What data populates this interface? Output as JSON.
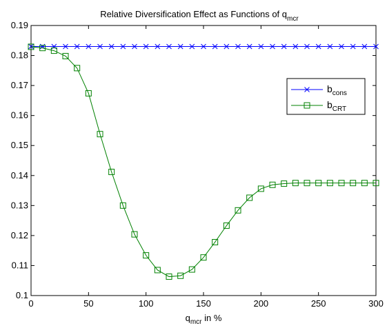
{
  "chart_data": {
    "type": "line",
    "title": {
      "main": "Relative Diversification Effect as Functions of q",
      "sub": "mcr"
    },
    "xlabel": {
      "main": "q",
      "sub": "mcr",
      "suffix": " in %"
    },
    "ylabel": "",
    "xlim": [
      0,
      300
    ],
    "ylim": [
      0.1,
      0.19
    ],
    "x_ticks": [
      0,
      50,
      100,
      150,
      200,
      250,
      300
    ],
    "y_ticks": [
      0.1,
      0.11,
      0.12,
      0.13,
      0.14,
      0.15,
      0.16,
      0.17,
      0.18,
      0.19
    ],
    "grid": false,
    "legend_position": "right",
    "x": [
      0,
      10,
      20,
      30,
      40,
      50,
      60,
      70,
      80,
      90,
      100,
      110,
      120,
      130,
      140,
      150,
      160,
      170,
      180,
      190,
      200,
      210,
      220,
      230,
      240,
      250,
      260,
      270,
      280,
      290,
      300
    ],
    "series": [
      {
        "name": {
          "main": "b",
          "sub": "cons"
        },
        "color": "#0000ff",
        "marker": "x",
        "values": [
          0.183,
          0.183,
          0.183,
          0.183,
          0.183,
          0.183,
          0.183,
          0.183,
          0.183,
          0.183,
          0.183,
          0.183,
          0.183,
          0.183,
          0.183,
          0.183,
          0.183,
          0.183,
          0.183,
          0.183,
          0.183,
          0.183,
          0.183,
          0.183,
          0.183,
          0.183,
          0.183,
          0.183,
          0.183,
          0.183,
          0.183
        ]
      },
      {
        "name": {
          "main": "b",
          "sub": "CRT"
        },
        "color": "#008000",
        "marker": "square",
        "values": [
          0.1829,
          0.1825,
          0.1816,
          0.1798,
          0.1758,
          0.1674,
          0.1538,
          0.1412,
          0.13,
          0.1204,
          0.1134,
          0.1085,
          0.1063,
          0.1066,
          0.1087,
          0.1127,
          0.1178,
          0.1233,
          0.1284,
          0.1326,
          0.1356,
          0.1369,
          0.1373,
          0.1375,
          0.1375,
          0.1375,
          0.1375,
          0.1375,
          0.1375,
          0.1375,
          0.1375
        ]
      }
    ]
  }
}
